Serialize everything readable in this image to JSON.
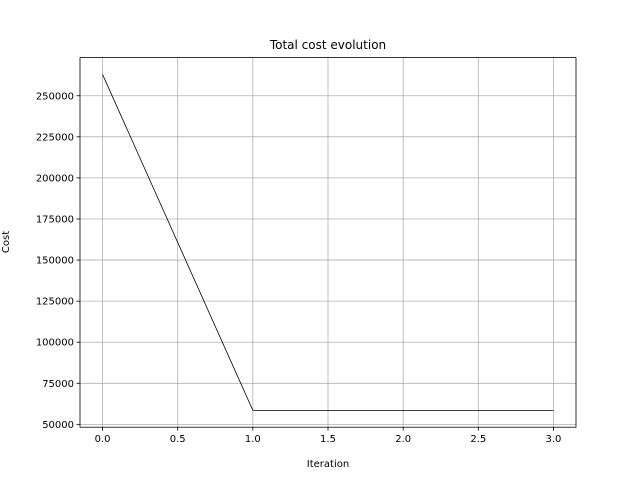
{
  "chart_data": {
    "type": "line",
    "title": "Total cost evolution",
    "xlabel": "Iteration",
    "ylabel": "Cost",
    "x": [
      0,
      1,
      2,
      3
    ],
    "series": [
      {
        "color": "#000000",
        "values": [
          263000,
          58500,
          58500,
          58500
        ]
      }
    ],
    "xlim": [
      -0.15,
      3.15
    ],
    "xticks": [
      {
        "value": 0,
        "label": "0.0"
      },
      0.5,
      {
        "value": 1,
        "label": "1.0"
      },
      1.5,
      {
        "value": 2,
        "label": "2.0"
      },
      2.5,
      {
        "value": 3,
        "label": "3.0"
      }
    ],
    "ylim": [
      48275,
      273225
    ],
    "yticks": [
      50000,
      75000,
      100000,
      125000,
      150000,
      175000,
      200000,
      225000,
      250000
    ],
    "grid": true
  }
}
